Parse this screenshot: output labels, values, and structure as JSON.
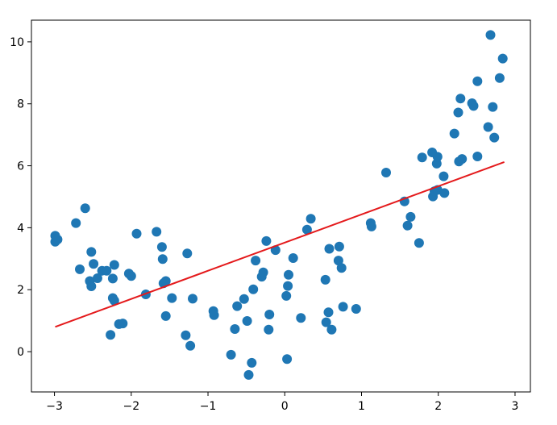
{
  "chart_data": {
    "type": "scatter",
    "title": "",
    "xlabel": "",
    "ylabel": "",
    "xlim": [
      -3.3,
      3.2
    ],
    "ylim": [
      -1.3,
      10.7
    ],
    "x_ticks": [
      -3,
      -2,
      -1,
      0,
      1,
      2,
      3
    ],
    "x_tick_labels": [
      "−3",
      "−2",
      "−1",
      "0",
      "1",
      "2",
      "3"
    ],
    "y_ticks": [
      0,
      2,
      4,
      6,
      8,
      10
    ],
    "y_tick_labels": [
      "0",
      "2",
      "4",
      "6",
      "8",
      "10"
    ],
    "grid": false,
    "colors": {
      "points": "#1f77b4",
      "fit_line": "#e41a1c",
      "axes": "#000000",
      "background": "#ffffff"
    },
    "series": [
      {
        "kind": "scatter",
        "points": [
          [
            -2.99,
            3.74
          ],
          [
            -2.99,
            3.55
          ],
          [
            -2.96,
            3.62
          ],
          [
            -2.72,
            4.15
          ],
          [
            -2.67,
            2.66
          ],
          [
            -2.6,
            4.63
          ],
          [
            -2.54,
            2.28
          ],
          [
            -2.52,
            2.11
          ],
          [
            -2.52,
            3.22
          ],
          [
            -2.49,
            2.83
          ],
          [
            -2.44,
            2.37
          ],
          [
            -2.38,
            2.61
          ],
          [
            -2.32,
            2.61
          ],
          [
            -2.27,
            0.54
          ],
          [
            -2.24,
            2.36
          ],
          [
            -2.24,
            1.73
          ],
          [
            -2.22,
            2.8
          ],
          [
            -2.22,
            1.65
          ],
          [
            -2.16,
            0.89
          ],
          [
            -2.11,
            0.91
          ],
          [
            -2.03,
            2.52
          ],
          [
            -2.0,
            2.44
          ],
          [
            -1.93,
            3.81
          ],
          [
            -1.81,
            1.85
          ],
          [
            -1.67,
            3.87
          ],
          [
            -1.6,
            3.38
          ],
          [
            -1.59,
            2.99
          ],
          [
            -1.58,
            2.21
          ],
          [
            -1.55,
            2.28
          ],
          [
            -1.55,
            1.15
          ],
          [
            -1.47,
            1.73
          ],
          [
            -1.29,
            0.53
          ],
          [
            -1.27,
            3.17
          ],
          [
            -1.23,
            0.19
          ],
          [
            -1.2,
            1.71
          ],
          [
            -0.93,
            1.31
          ],
          [
            -0.92,
            1.18
          ],
          [
            -0.7,
            -0.1
          ],
          [
            -0.65,
            0.73
          ],
          [
            -0.62,
            1.47
          ],
          [
            -0.53,
            1.7
          ],
          [
            -0.49,
            0.99
          ],
          [
            -0.47,
            -0.75
          ],
          [
            -0.43,
            -0.36
          ],
          [
            -0.41,
            2.01
          ],
          [
            -0.38,
            2.94
          ],
          [
            -0.3,
            2.42
          ],
          [
            -0.28,
            2.56
          ],
          [
            -0.24,
            3.57
          ],
          [
            -0.21,
            0.71
          ],
          [
            -0.2,
            1.2
          ],
          [
            -0.12,
            3.28
          ],
          [
            0.02,
            1.8
          ],
          [
            0.03,
            -0.24
          ],
          [
            0.04,
            2.12
          ],
          [
            0.05,
            2.48
          ],
          [
            0.11,
            3.02
          ],
          [
            0.21,
            1.09
          ],
          [
            0.29,
            3.94
          ],
          [
            0.34,
            4.29
          ],
          [
            0.53,
            2.32
          ],
          [
            0.54,
            0.95
          ],
          [
            0.57,
            1.27
          ],
          [
            0.58,
            3.32
          ],
          [
            0.61,
            0.71
          ],
          [
            0.7,
            2.94
          ],
          [
            0.71,
            3.39
          ],
          [
            0.74,
            2.7
          ],
          [
            0.76,
            1.45
          ],
          [
            0.93,
            1.38
          ],
          [
            1.12,
            4.15
          ],
          [
            1.13,
            4.04
          ],
          [
            1.32,
            5.78
          ],
          [
            1.56,
            4.85
          ],
          [
            1.6,
            4.07
          ],
          [
            1.64,
            4.35
          ],
          [
            1.75,
            3.51
          ],
          [
            1.79,
            6.27
          ],
          [
            1.92,
            6.43
          ],
          [
            1.93,
            5.01
          ],
          [
            1.95,
            5.18
          ],
          [
            1.98,
            6.07
          ],
          [
            1.99,
            6.29
          ],
          [
            1.99,
            5.22
          ],
          [
            2.07,
            5.66
          ],
          [
            2.08,
            5.12
          ],
          [
            2.21,
            7.04
          ],
          [
            2.26,
            7.72
          ],
          [
            2.27,
            6.14
          ],
          [
            2.29,
            8.17
          ],
          [
            2.31,
            6.22
          ],
          [
            2.44,
            8.02
          ],
          [
            2.46,
            7.93
          ],
          [
            2.51,
            8.73
          ],
          [
            2.51,
            6.3
          ],
          [
            2.65,
            7.25
          ],
          [
            2.68,
            10.22
          ],
          [
            2.71,
            7.9
          ],
          [
            2.73,
            6.91
          ],
          [
            2.8,
            8.83
          ],
          [
            2.84,
            9.46
          ]
        ]
      },
      {
        "kind": "line",
        "points": [
          [
            -2.99,
            0.8
          ],
          [
            2.86,
            6.12
          ]
        ]
      }
    ]
  }
}
